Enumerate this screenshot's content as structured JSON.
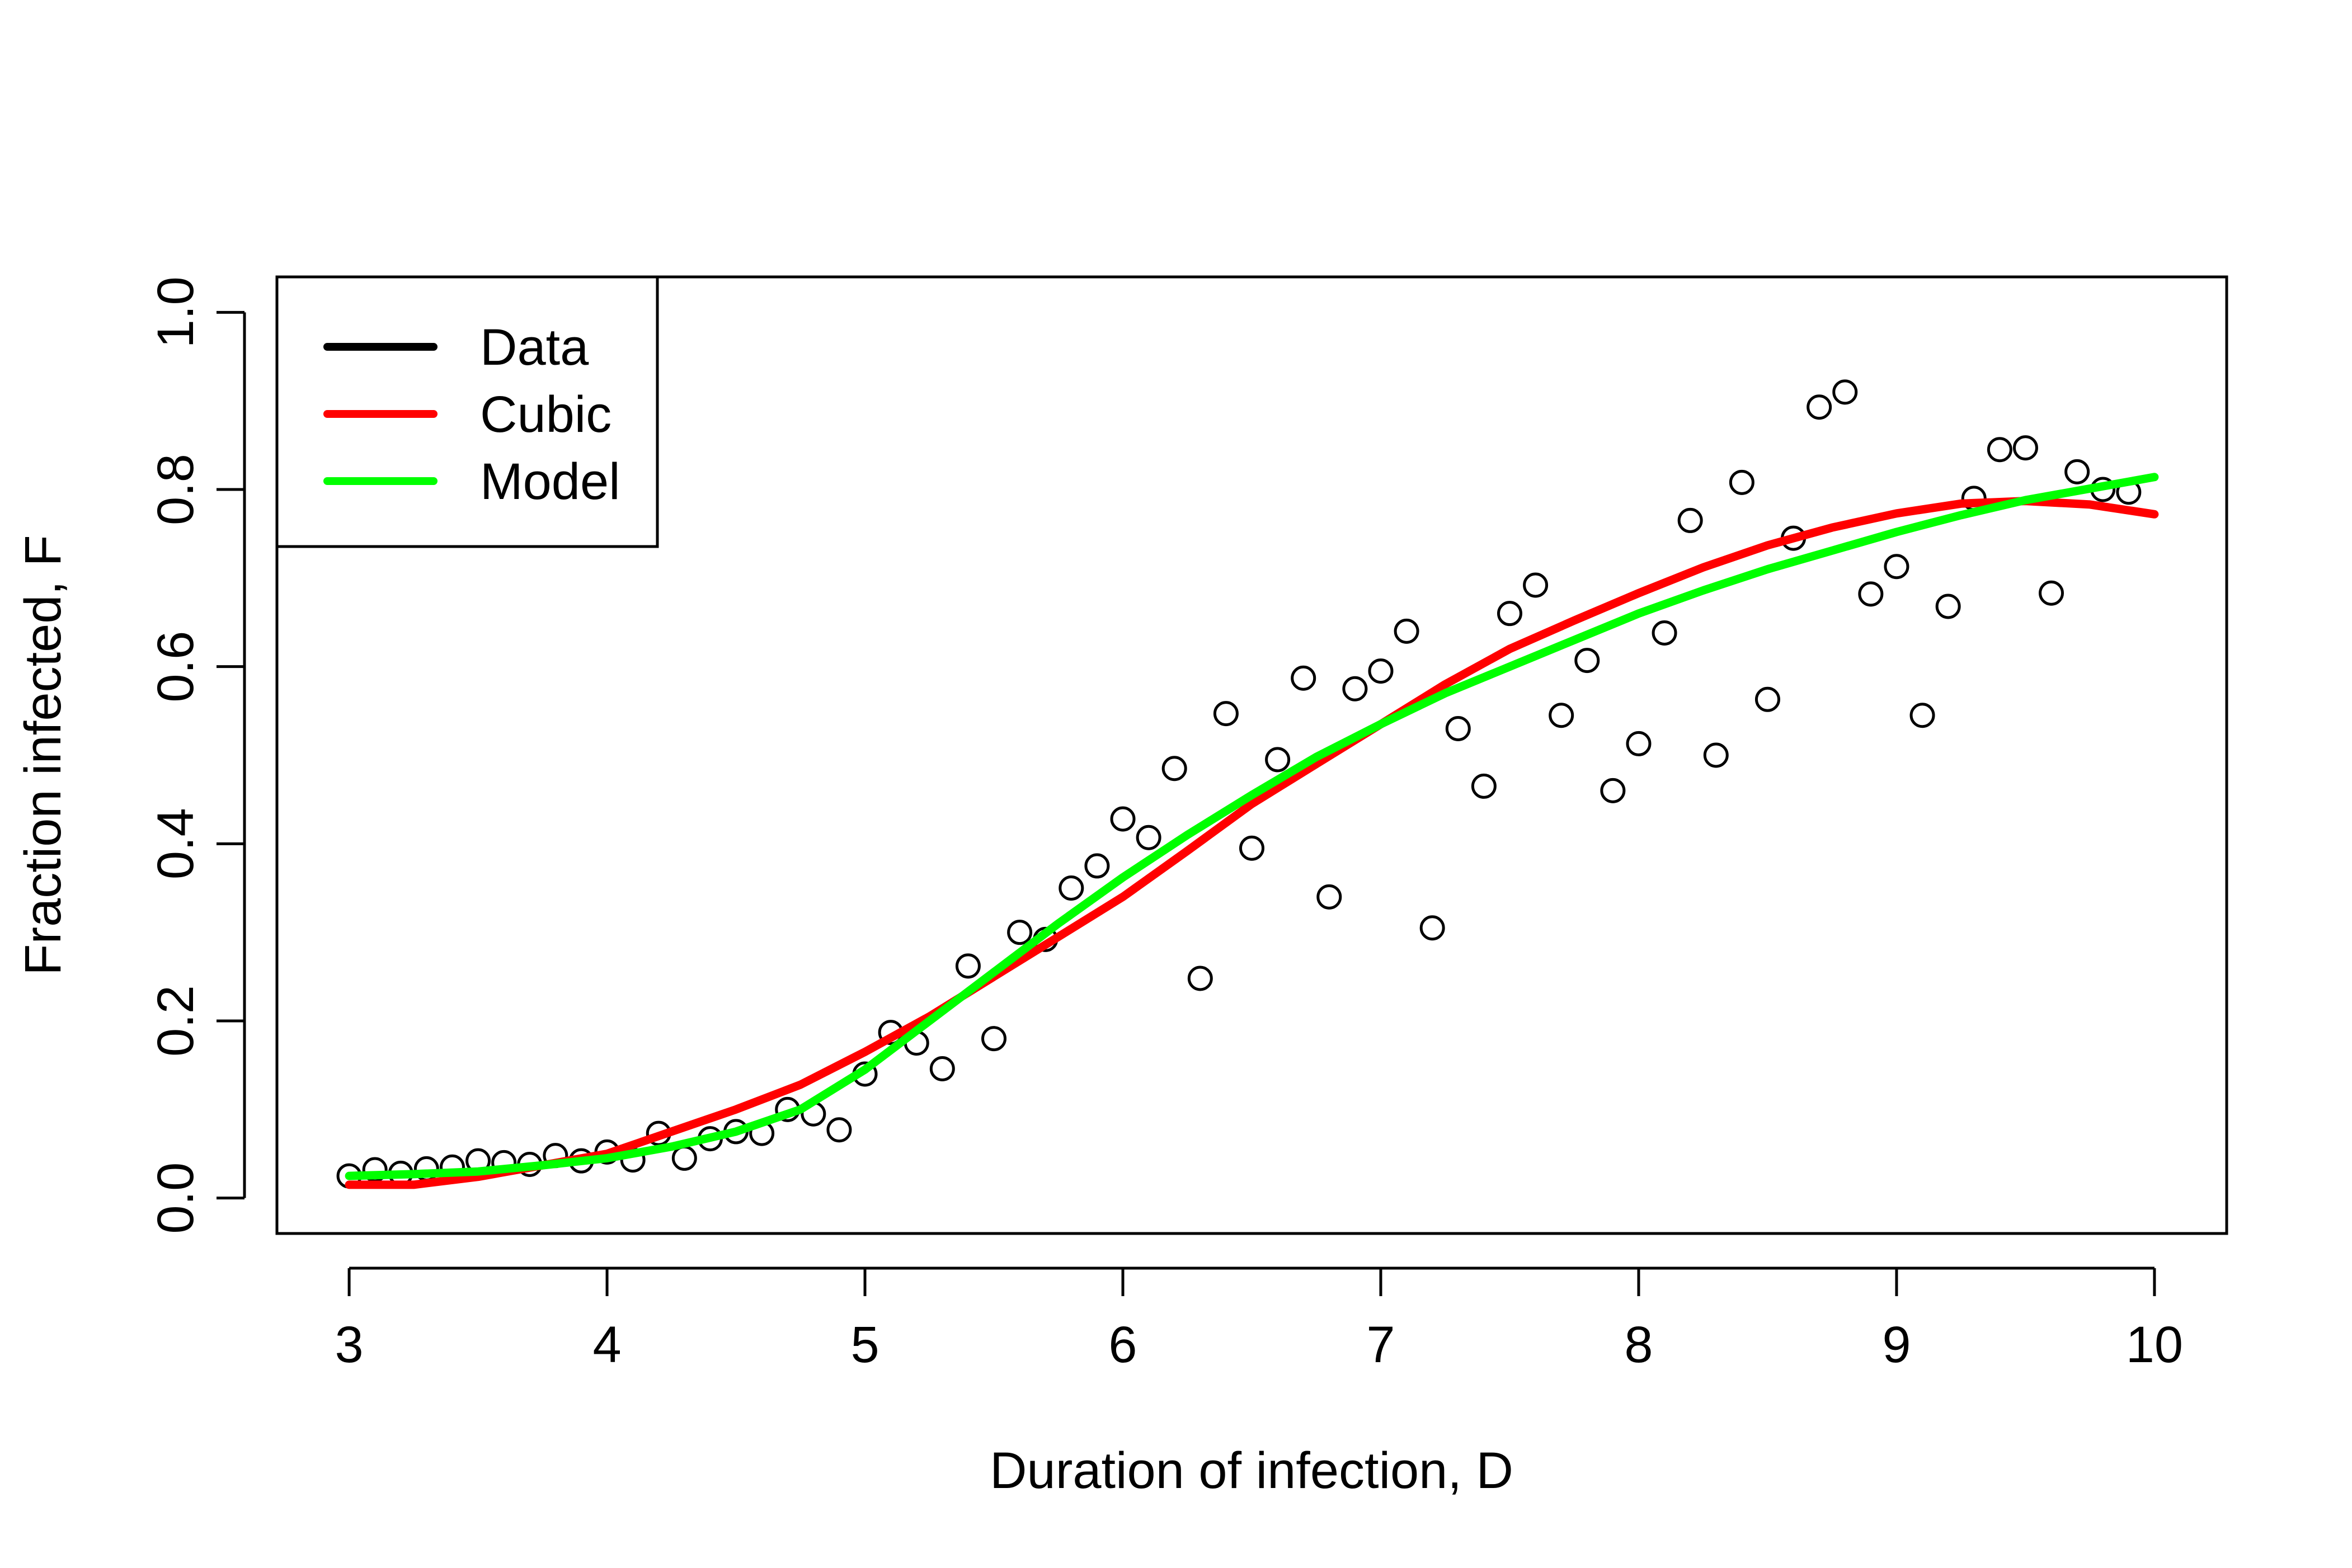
{
  "chart_data": {
    "type": "scatter",
    "title": "",
    "xlabel": "Duration of infection, D",
    "ylabel": "Fraction infected, F",
    "xlim": [
      2.72,
      10.28
    ],
    "ylim": [
      -0.04,
      1.04
    ],
    "xticks": [
      3,
      4,
      5,
      6,
      7,
      8,
      9,
      10
    ],
    "yticks": [
      0.0,
      0.2,
      0.4,
      0.6,
      0.8,
      1.0
    ],
    "xtick_labels": [
      "3",
      "4",
      "5",
      "6",
      "7",
      "8",
      "9",
      "10"
    ],
    "ytick_labels": [
      "0.0",
      "0.2",
      "0.4",
      "0.6",
      "0.8",
      "1.0"
    ],
    "grid": false,
    "legend_position": "top-left",
    "legend": [
      {
        "label": "Data",
        "color": "#000000"
      },
      {
        "label": "Cubic",
        "color": "#ff0000"
      },
      {
        "label": "Model",
        "color": "#00ff00"
      }
    ],
    "series": [
      {
        "name": "Data",
        "kind": "points",
        "color": "#000000",
        "x": [
          3.0,
          3.1,
          3.2,
          3.3,
          3.4,
          3.5,
          3.6,
          3.7,
          3.8,
          3.9,
          4.0,
          4.1,
          4.2,
          4.3,
          4.4,
          4.5,
          4.6,
          4.7,
          4.8,
          4.9,
          5.0,
          5.1,
          5.2,
          5.3,
          5.4,
          5.5,
          5.6,
          5.7,
          5.8,
          5.9,
          6.0,
          6.1,
          6.2,
          6.3,
          6.4,
          6.5,
          6.6,
          6.7,
          6.8,
          6.9,
          7.0,
          7.1,
          7.2,
          7.3,
          7.4,
          7.5,
          7.6,
          7.7,
          7.8,
          7.9,
          8.0,
          8.1,
          8.2,
          8.3,
          8.4,
          8.5,
          8.6,
          8.7,
          8.8,
          8.9,
          9.0,
          9.1,
          9.2,
          9.3,
          9.4,
          9.5,
          9.6,
          9.7,
          9.8,
          9.9
        ],
        "y": [
          0.025,
          0.032,
          0.028,
          0.033,
          0.035,
          0.042,
          0.04,
          0.038,
          0.048,
          0.042,
          0.052,
          0.043,
          0.073,
          0.045,
          0.067,
          0.075,
          0.073,
          0.1,
          0.095,
          0.077,
          0.14,
          0.187,
          0.175,
          0.146,
          0.262,
          0.18,
          0.3,
          0.292,
          0.35,
          0.375,
          0.428,
          0.407,
          0.485,
          0.248,
          0.547,
          0.395,
          0.495,
          0.587,
          0.34,
          0.575,
          0.595,
          0.64,
          0.305,
          0.53,
          0.465,
          0.66,
          0.692,
          0.545,
          0.607,
          0.46,
          0.513,
          0.638,
          0.765,
          0.5,
          0.808,
          0.563,
          0.745,
          0.893,
          0.91,
          0.682,
          0.713,
          0.545,
          0.668,
          0.79,
          0.845,
          0.847,
          0.683,
          0.82,
          0.8,
          0.797
        ]
      },
      {
        "name": "Cubic",
        "kind": "line",
        "color": "#ff0000",
        "x": [
          3.0,
          3.25,
          3.5,
          3.75,
          4.0,
          4.25,
          4.5,
          4.75,
          5.0,
          5.25,
          5.5,
          5.75,
          6.0,
          6.25,
          6.5,
          6.75,
          7.0,
          7.25,
          7.5,
          7.75,
          8.0,
          8.25,
          8.5,
          8.75,
          9.0,
          9.25,
          9.5,
          9.75,
          10.0
        ],
        "y": [
          0.015,
          0.015,
          0.024,
          0.037,
          0.05,
          0.075,
          0.1,
          0.128,
          0.165,
          0.205,
          0.25,
          0.295,
          0.34,
          0.392,
          0.445,
          0.49,
          0.535,
          0.58,
          0.62,
          0.652,
          0.683,
          0.712,
          0.737,
          0.757,
          0.773,
          0.784,
          0.787,
          0.783,
          0.772
        ]
      },
      {
        "name": "Model",
        "kind": "line",
        "color": "#00ff00",
        "x": [
          3.0,
          3.25,
          3.5,
          3.75,
          4.0,
          4.25,
          4.5,
          4.75,
          5.0,
          5.25,
          5.5,
          5.75,
          6.0,
          6.25,
          6.5,
          6.75,
          7.0,
          7.25,
          7.5,
          7.75,
          8.0,
          8.25,
          8.5,
          8.75,
          9.0,
          9.25,
          9.5,
          9.75,
          10.0
        ],
        "y": [
          0.025,
          0.027,
          0.03,
          0.037,
          0.045,
          0.058,
          0.075,
          0.1,
          0.145,
          0.2,
          0.255,
          0.31,
          0.362,
          0.41,
          0.455,
          0.498,
          0.535,
          0.57,
          0.6,
          0.63,
          0.66,
          0.686,
          0.71,
          0.731,
          0.752,
          0.771,
          0.788,
          0.801,
          0.814
        ]
      }
    ]
  }
}
